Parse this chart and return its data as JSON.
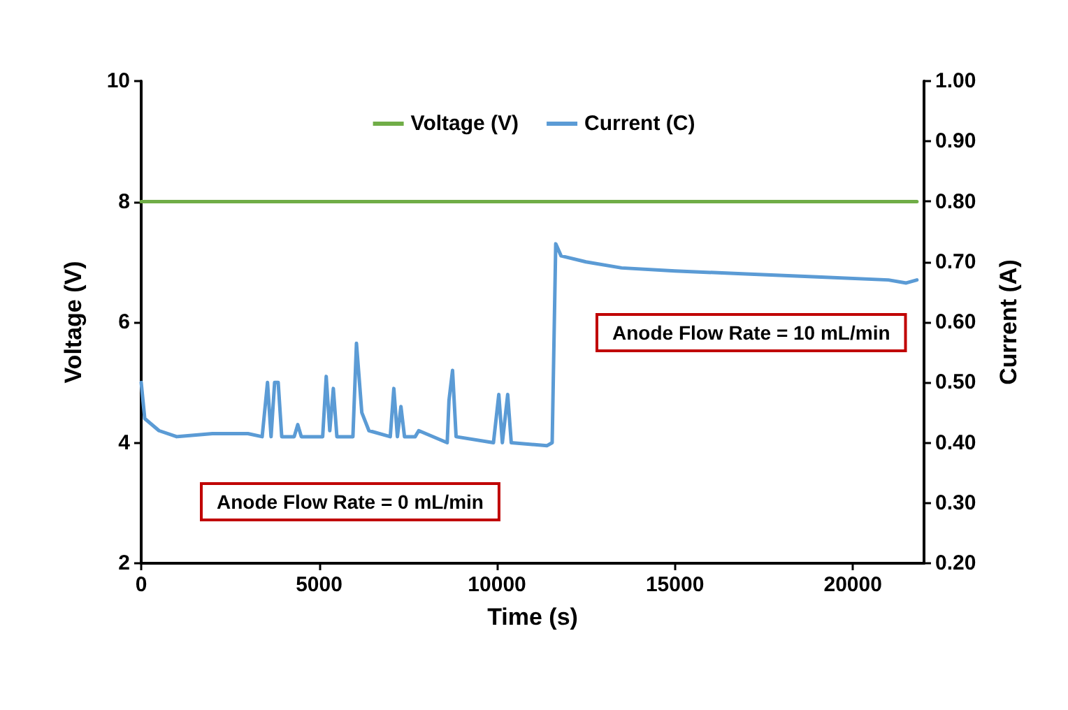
{
  "chart_data": {
    "type": "line",
    "xlabel": "Time (s)",
    "ylabel": "Voltage (V)",
    "y2label": "Current (A)",
    "xlim": [
      0,
      22000
    ],
    "xticks": [
      0,
      5000,
      10000,
      15000,
      20000
    ],
    "ylim": [
      2,
      10
    ],
    "yticks": [
      2,
      4,
      6,
      8,
      10
    ],
    "y2lim": [
      0.2,
      1.0
    ],
    "y2ticks": [
      {
        "value": 0.2,
        "label": "0.20"
      },
      {
        "value": 0.3,
        "label": "0.30"
      },
      {
        "value": 0.4,
        "label": "0.40"
      },
      {
        "value": 0.5,
        "label": "0.50"
      },
      {
        "value": 0.6,
        "label": "0.60"
      },
      {
        "value": 0.7,
        "label": "0.70"
      },
      {
        "value": 0.8,
        "label": "0.80"
      },
      {
        "value": 0.9,
        "label": "0.90"
      },
      {
        "value": 1.0,
        "label": "1.00"
      }
    ],
    "grid": false,
    "legend": "top",
    "marker": "none",
    "line_style": "solid",
    "series": [
      {
        "name": "Voltage (V)",
        "color": "#70ad47",
        "x": [
          0,
          5000,
          10000,
          15000,
          20000,
          21800
        ],
        "values": [
          8,
          8,
          8,
          8,
          8,
          8
        ]
      },
      {
        "name": "Current (C)",
        "color": "#5b9bd5",
        "axis": "y2",
        "x": [
          0,
          100,
          500,
          1000,
          2000,
          3000,
          3400,
          3550,
          3650,
          3750,
          3850,
          3950,
          4300,
          4400,
          4500,
          5100,
          5200,
          5300,
          5400,
          5500,
          5950,
          6050,
          6200,
          6400,
          7000,
          7100,
          7200,
          7300,
          7400,
          7700,
          7800,
          8600,
          8650,
          8750,
          8850,
          9900,
          10050,
          10150,
          10300,
          10400,
          11400,
          11550,
          11650,
          11800,
          12500,
          13500,
          15000,
          17000,
          19000,
          21000,
          21500,
          21800
        ],
        "values": [
          0.5,
          0.44,
          0.42,
          0.41,
          0.415,
          0.415,
          0.41,
          0.5,
          0.41,
          0.5,
          0.5,
          0.41,
          0.41,
          0.43,
          0.41,
          0.41,
          0.51,
          0.42,
          0.49,
          0.41,
          0.41,
          0.565,
          0.45,
          0.42,
          0.41,
          0.49,
          0.41,
          0.46,
          0.41,
          0.41,
          0.42,
          0.4,
          0.47,
          0.52,
          0.41,
          0.4,
          0.48,
          0.4,
          0.48,
          0.4,
          0.395,
          0.4,
          0.73,
          0.71,
          0.7,
          0.69,
          0.685,
          0.68,
          0.675,
          0.67,
          0.665,
          0.67
        ]
      }
    ],
    "annotations": [
      "Anode Flow Rate = 0 mL/min",
      "Anode Flow Rate = 10 mL/min"
    ]
  }
}
